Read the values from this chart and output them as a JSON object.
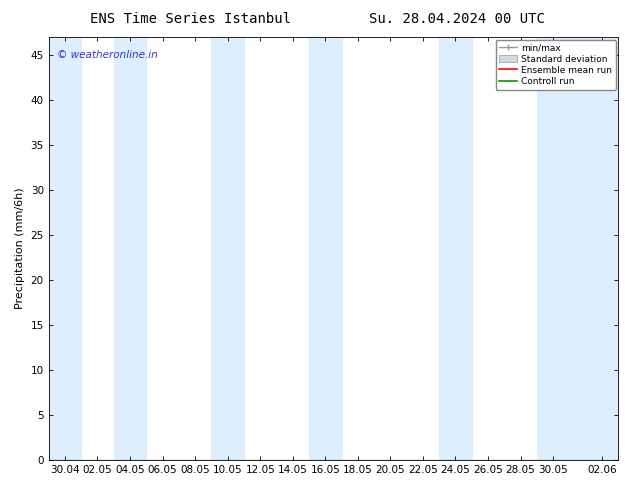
{
  "title_left": "ENS Time Series Istanbul",
  "title_right": "Su. 28.04.2024 00 UTC",
  "ylabel": "Precipitation (mm/6h)",
  "watermark": "© weatheronline.in",
  "watermark_color": "#3333cc",
  "ylim": [
    0,
    47
  ],
  "yticks": [
    0,
    5,
    10,
    15,
    20,
    25,
    30,
    35,
    40,
    45
  ],
  "bg_color": "#ffffff",
  "plot_bg_color": "#ffffff",
  "shade_color": "#ddeeff",
  "shade_alpha": 1.0,
  "x_tick_labels": [
    "30.04",
    "02.05",
    "04.05",
    "06.05",
    "08.05",
    "10.05",
    "12.05",
    "14.05",
    "16.05",
    "18.05",
    "20.05",
    "22.05",
    "24.05",
    "26.05",
    "28.05",
    "30.05",
    "02.06"
  ],
  "x_tick_positions": [
    1,
    3,
    5,
    7,
    9,
    11,
    13,
    15,
    17,
    19,
    21,
    23,
    25,
    27,
    29,
    31,
    34
  ],
  "shade_bands": [
    [
      0,
      2
    ],
    [
      4,
      6
    ],
    [
      10,
      12
    ],
    [
      16,
      18
    ],
    [
      24,
      26
    ],
    [
      30,
      35
    ]
  ],
  "x_min": 0,
  "x_max": 35,
  "legend_items": [
    {
      "label": "min/max",
      "color": "#aaaaaa",
      "type": "errorbar"
    },
    {
      "label": "Standard deviation",
      "color": "#ccdde8",
      "type": "box"
    },
    {
      "label": "Ensemble mean run",
      "color": "#ff0000",
      "type": "line"
    },
    {
      "label": "Controll run",
      "color": "#009900",
      "type": "line"
    }
  ],
  "title_fontsize": 10,
  "axis_fontsize": 8,
  "tick_fontsize": 7.5
}
